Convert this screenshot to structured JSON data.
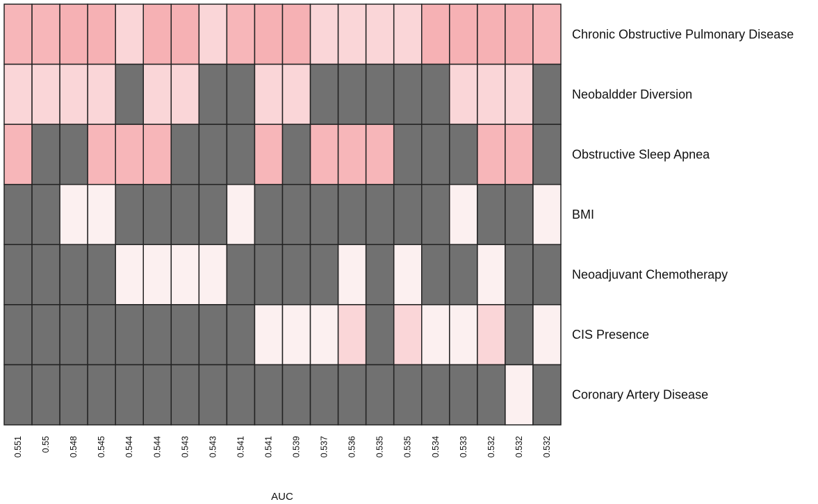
{
  "chart_data": {
    "type": "heatmap",
    "title": "",
    "xlabel": "AUC",
    "ylabel": "",
    "grid": true,
    "legend": "none",
    "x": [
      "0.551",
      "0.55",
      "0.548",
      "0.545",
      "0.544",
      "0.544",
      "0.543",
      "0.543",
      "0.541",
      "0.541",
      "0.539",
      "0.537",
      "0.536",
      "0.535",
      "0.535",
      "0.534",
      "0.533",
      "0.532",
      "0.532",
      "0.532"
    ],
    "rows": [
      "Chronic Obstructive Pulmonary Disease",
      "Neobaldder Diversion",
      "Obstructive Sleep Apnea",
      "BMI",
      "Neoadjuvant Chemotherapy",
      "CIS Presence",
      "Coronary Artery Disease"
    ],
    "level_scale": {
      "0": "absent (grey)",
      "1": "lightest pink",
      "2": "light pink",
      "3": "medium pink",
      "4": "darker pink"
    },
    "values": [
      [
        3,
        3,
        4,
        4,
        2,
        4,
        4,
        2,
        3,
        4,
        4,
        2,
        2,
        2,
        2,
        4,
        4,
        4,
        4,
        3
      ],
      [
        2,
        2,
        2,
        2,
        0,
        2,
        2,
        0,
        0,
        2,
        2,
        0,
        0,
        0,
        0,
        0,
        2,
        2,
        2,
        0
      ],
      [
        3,
        0,
        0,
        3,
        3,
        3,
        0,
        0,
        0,
        3,
        0,
        3,
        3,
        3,
        0,
        0,
        0,
        3,
        3,
        0
      ],
      [
        0,
        0,
        1,
        1,
        0,
        0,
        0,
        0,
        1,
        0,
        0,
        0,
        0,
        0,
        0,
        0,
        1,
        0,
        0,
        1
      ],
      [
        0,
        0,
        0,
        0,
        1,
        1,
        1,
        1,
        0,
        0,
        0,
        0,
        1,
        0,
        1,
        0,
        0,
        1,
        0,
        0
      ],
      [
        0,
        0,
        0,
        0,
        0,
        0,
        0,
        0,
        0,
        1,
        1,
        1,
        2,
        0,
        2,
        1,
        1,
        2,
        0,
        1
      ],
      [
        0,
        0,
        0,
        0,
        0,
        0,
        0,
        0,
        0,
        0,
        0,
        0,
        0,
        0,
        0,
        0,
        0,
        0,
        1,
        0
      ]
    ],
    "colors": {
      "0": "#717171",
      "1": "#fcf0f0",
      "2": "#fad6d8",
      "3": "#f7b6b9",
      "4": "#f6b1b4",
      "border": "#222222"
    }
  }
}
